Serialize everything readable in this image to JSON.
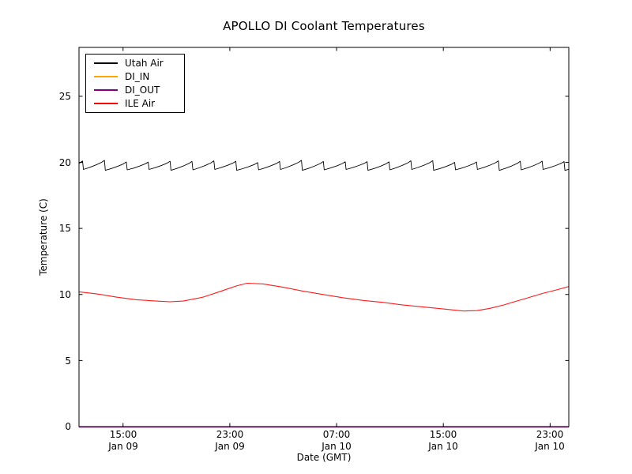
{
  "figure": {
    "title": "APOLLO DI Coolant Temperatures",
    "xlabel": "Date (GMT)",
    "ylabel": "Temperature (C)"
  },
  "legend": {
    "position": "upper left",
    "items": [
      {
        "label": "Utah Air",
        "color": "#000000"
      },
      {
        "label": "DI_IN",
        "color": "#ffa500"
      },
      {
        "label": "DI_OUT",
        "color": "#800080"
      },
      {
        "label": "ILE Air",
        "color": "#ff0000"
      }
    ]
  },
  "chart_data": {
    "type": "line",
    "title": "APOLLO DI Coolant Temperatures",
    "xlabel": "Date (GMT)",
    "ylabel": "Temperature (C)",
    "grid": false,
    "background": "#ffffff",
    "x_unit": "hours since Jan 09 00:00 GMT",
    "xlim": [
      11.7,
      48.4
    ],
    "ylim": [
      0,
      28.7
    ],
    "yticks": [
      0,
      5,
      10,
      15,
      20,
      25
    ],
    "xticks": [
      {
        "hour": 15,
        "time": "15:00",
        "date": "Jan 09"
      },
      {
        "hour": 23,
        "time": "23:00",
        "date": "Jan 09"
      },
      {
        "hour": 31,
        "time": "07:00",
        "date": "Jan 10"
      },
      {
        "hour": 39,
        "time": "15:00",
        "date": "Jan 10"
      },
      {
        "hour": 47,
        "time": "23:00",
        "date": "Jan 10"
      }
    ],
    "series": [
      {
        "name": "Utah Air",
        "color": "#000000",
        "style": "sawtooth",
        "description": "Thermostat-like cycling between ~19.4 C and ~20.1 C, period ~1.6 h, slow ramp up then sharp drop",
        "sawtooth": {
          "base": 19.43,
          "amplitude": 0.64,
          "period_hours": 1.64,
          "first_drop_hour": 12.0,
          "base_jitter": 0.04,
          "amp_jitter": 0.05
        }
      },
      {
        "name": "DI_IN",
        "color": "#ffa500",
        "style": "constant",
        "value": 0,
        "description": "Flat at 0 C, hidden along the bottom axis"
      },
      {
        "name": "DI_OUT",
        "color": "#800080",
        "style": "constant",
        "value": 0,
        "description": "Flat at 0 C, hidden along the bottom axis"
      },
      {
        "name": "ILE Air",
        "color": "#ff0000",
        "style": "points",
        "points": [
          [
            11.7,
            10.2
          ],
          [
            13,
            10.05
          ],
          [
            14.5,
            9.8
          ],
          [
            16,
            9.6
          ],
          [
            17.5,
            9.5
          ],
          [
            18.5,
            9.45
          ],
          [
            19.5,
            9.5
          ],
          [
            21,
            9.8
          ],
          [
            22.5,
            10.3
          ],
          [
            23.5,
            10.65
          ],
          [
            24.3,
            10.85
          ],
          [
            25.5,
            10.8
          ],
          [
            27,
            10.55
          ],
          [
            28.5,
            10.25
          ],
          [
            30,
            10.0
          ],
          [
            31.5,
            9.75
          ],
          [
            33,
            9.55
          ],
          [
            34.5,
            9.4
          ],
          [
            36,
            9.2
          ],
          [
            37.5,
            9.05
          ],
          [
            39,
            8.9
          ],
          [
            40.5,
            8.75
          ],
          [
            41.5,
            8.78
          ],
          [
            42.5,
            8.95
          ],
          [
            43.5,
            9.2
          ],
          [
            44.5,
            9.5
          ],
          [
            45.5,
            9.8
          ],
          [
            46.5,
            10.1
          ],
          [
            47.5,
            10.35
          ],
          [
            48.4,
            10.6
          ]
        ]
      }
    ]
  }
}
